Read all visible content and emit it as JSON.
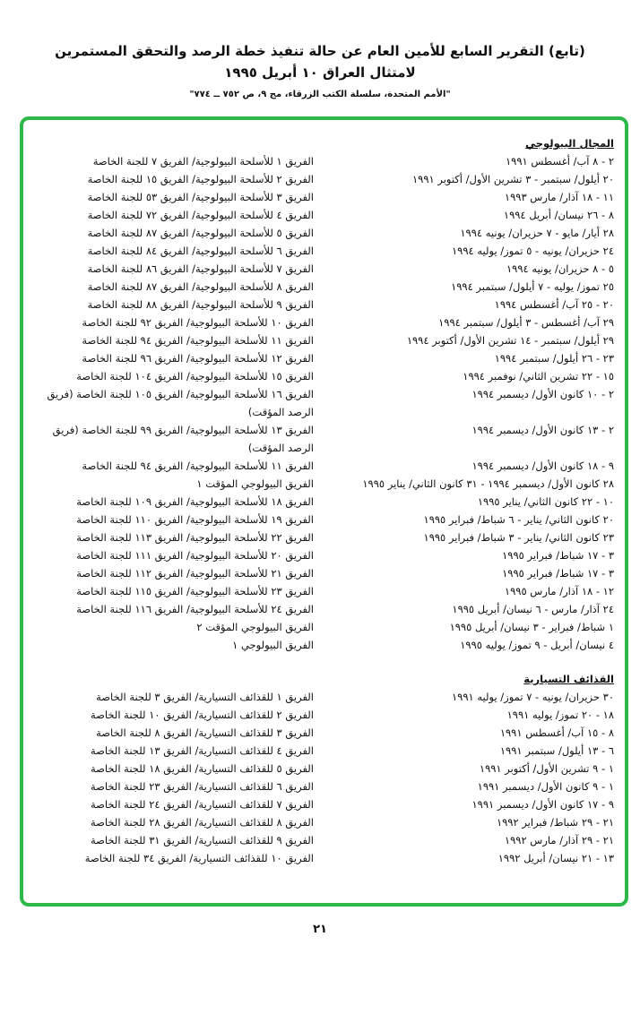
{
  "header": {
    "title_line1": "(تابع) التقرير السابع للأمين العام عن حالة تنفيذ خطة الرصد والتحقق المستمرين",
    "title_line2": "لامتثال العراق ١٠ أبريل ١٩٩٥",
    "source": "\"الأمم المتحدة، سلسلة الكتب الزرقاء، مج ٩، ص ٧٥٢ ــ ٧٧٤\""
  },
  "frame_color": "#2db84a",
  "sections": [
    {
      "title": "المجال البيولوجي",
      "rows": [
        [
          "٢ - ٨ آب/ أغسطس ١٩٩١",
          "الفريق ١ للأسلحة البيولوجية/ الفريق ٧ للجنة الخاصة"
        ],
        [
          "٢٠ أيلول/ سبتمبر - ٣ تشرين الأول/ أكتوبر ١٩٩١",
          "الفريق ٢ للأسلحة البيولوجية/ الفريق ١٥ للجنة الخاصة"
        ],
        [
          "١١ - ١٨ آذار/ مارس ١٩٩٣",
          "الفريق ٣ للأسلحة البيولوجية/ الفريق ٥٣ للجنة الخاصة"
        ],
        [
          "٨ - ٢٦ نيسان/ أبريل ١٩٩٤",
          "الفريق ٤ للأسلحة البيولوجية/ الفريق ٧٢ للجنة الخاصة"
        ],
        [
          "٢٨ أيار/ مايو - ٧ حزيران/ يونيه ١٩٩٤",
          "الفريق ٥ للأسلحة البيولوجية/ الفريق ٨٧ للجنة الخاصة"
        ],
        [
          "٢٤ حزيران/ يونيه - ٥ تموز/ يوليه ١٩٩٤",
          "الفريق ٦ للأسلحة البيولوجية/ الفريق ٨٤ للجنة الخاصة"
        ],
        [
          "٥ - ٨ حزيران/ يونيه ١٩٩٤",
          "الفريق ٧ للأسلحة البيولوجية/ الفريق ٨٦ للجنة الخاصة"
        ],
        [
          "٢٥ تموز/ يوليه - ٧ أيلول/ سبتمبر ١٩٩٤",
          "الفريق ٨ للأسلحة البيولوجية/ الفريق ٨٧ للجنة الخاصة"
        ],
        [
          "٢٠ - ٢٥ آب/ أغسطس ١٩٩٤",
          "الفريق ٩ للأسلحة البيولوجية/ الفريق ٨٨ للجنة الخاصة"
        ],
        [
          "٢٩ آب/ أغسطس - ٣ أيلول/ سبتمبر ١٩٩٤",
          "الفريق ١٠ للأسلحة البيولوجية/ الفريق ٩٢ للجنة الخاصة"
        ],
        [
          "٢٩ أيلول/ سبتمبر - ١٤ تشرين الأول/ أكتوبر ١٩٩٤",
          "الفريق ١١ للأسلحة البيولوجية/ الفريق ٩٤ للجنة الخاصة"
        ],
        [
          "٢٣ - ٢٦ أيلول/ سبتمبر ١٩٩٤",
          "الفريق ١٢ للأسلحة البيولوجية/ الفريق ٩٦ للجنة الخاصة"
        ],
        [
          "١٥ - ٢٢ تشرين الثاني/ نوفمبر ١٩٩٤",
          "الفريق ١٥ للأسلحة البيولوجية/ الفريق ١٠٤ للجنة الخاصة"
        ],
        [
          "٢ - ١٠ كانون الأول/ ديسمبر ١٩٩٤",
          "الفريق ١٦ للأسلحة البيولوجية/ الفريق ١٠٥ للجنة الخاصة (فريق الرصد المؤقت)"
        ],
        [
          "٢ - ١٣ كانون الأول/ ديسمبر ١٩٩٤",
          "الفريق ١٣ للأسلحة البيولوجية/ الفريق ٩٩ للجنة الخاصة (فريق الرصد المؤقت)"
        ],
        [
          "٩ - ١٨ كانون الأول/ ديسمبر ١٩٩٤",
          "الفريق ١١ للأسلحة البيولوجية/ الفريق ٩٤ للجنة الخاصة"
        ],
        [
          "٢٨ كانون الأول/ ديسمبر ١٩٩٤ - ٣١ كانون الثاني/ يناير ١٩٩٥",
          "الفريق البيولوجي المؤقت ١"
        ],
        [
          "١٠ - ٢٢ كانون الثاني/ يناير ١٩٩٥",
          "الفريق ١٨ للأسلحة البيولوجية/ الفريق ١٠٩ للجنة الخاصة"
        ],
        [
          "٢٠ كانون الثاني/ يناير - ٦ شباط/ فبراير ١٩٩٥",
          "الفريق ١٩ للأسلحة البيولوجية/ الفريق ١١٠ للجنة الخاصة"
        ],
        [
          "٢٣ كانون الثاني/ يناير - ٣ شباط/ فبراير ١٩٩٥",
          "الفريق ٢٢ للأسلحة البيولوجية/ الفريق ١١٣ للجنة الخاصة"
        ],
        [
          "٣ - ١٧ شباط/ فبراير ١٩٩٥",
          "الفريق ٢٠ للأسلحة البيولوجية/ الفريق ١١١ للجنة الخاصة"
        ],
        [
          "٣ - ١٧ شباط/ فبراير ١٩٩٥",
          "الفريق ٢١ للأسلحة البيولوجية/ الفريق ١١٢ للجنة الخاصة"
        ],
        [
          "١٢ - ١٨ آذار/ مارس ١٩٩٥",
          "الفريق ٢٣ للأسلحة البيولوجية/ الفريق ١١٥ للجنة الخاصة"
        ],
        [
          "٢٤ آذار/ مارس - ٦ نيسان/ أبريل ١٩٩٥",
          "الفريق ٢٤ للأسلحة البيولوجية/ الفريق ١١٦ للجنة الخاصة"
        ],
        [
          "١ شباط/ فبراير - ٣ نيسان/ أبريل ١٩٩٥",
          "الفريق البيولوجي المؤقت ٢"
        ],
        [
          "٤ نيسان/ أبريل - ٩ تموز/ يوليه ١٩٩٥",
          "الفريق البيولوجي ١"
        ]
      ]
    },
    {
      "title": "القذائف التسيارية",
      "rows": [
        [
          "٣٠ حزيران/ يونيه - ٧ تموز/ يوليه ١٩٩١",
          "الفريق ١ للقذائف التسيارية/ الفريق ٣ للجنة الخاصة"
        ],
        [
          "١٨ - ٢٠ تموز/ يوليه ١٩٩١",
          "الفريق ٢ للقذائف التسيارية/ الفريق ١٠ للجنة الخاصة"
        ],
        [
          "٨ - ١٥ آب/ أغسطس ١٩٩١",
          "الفريق ٣ للقذائف التسيارية/ الفريق ٨ للجنة الخاصة"
        ],
        [
          "٦ - ١٣ أيلول/ سبتمبر ١٩٩١",
          "الفريق ٤ للقذائف التسيارية/ الفريق ١٣ للجنة الخاصة"
        ],
        [
          "١ - ٩ تشرين الأول/ أكتوبر ١٩٩١",
          "الفريق ٥ للقذائف التسيارية/ الفريق ١٨ للجنة الخاصة"
        ],
        [
          "١ - ٩ كانون الأول/ ديسمبر ١٩٩١",
          "الفريق ٦ للقذائف التسيارية/ الفريق ٢٣ للجنة الخاصة"
        ],
        [
          "٩ - ١٧ كانون الأول/ ديسمبر ١٩٩١",
          "الفريق ٧ للقذائف التسيارية/ الفريق ٢٤ للجنة الخاصة"
        ],
        [
          "٢١ - ٢٩ شباط/ فبراير ١٩٩٢",
          "الفريق ٨ للقذائف التسيارية/ الفريق ٢٨ للجنة الخاصة"
        ],
        [
          "٢١ - ٢٩ آذار/ مارس ١٩٩٢",
          "الفريق ٩ للقذائف التسيارية/ الفريق ٣١ للجنة الخاصة"
        ],
        [
          "١٣ - ٢١ نيسان/ أبريل ١٩٩٢",
          "الفريق ١٠ للقذائف التسيارية/ الفريق ٣٤ للجنة الخاصة"
        ]
      ]
    }
  ],
  "page_number": "٢١"
}
